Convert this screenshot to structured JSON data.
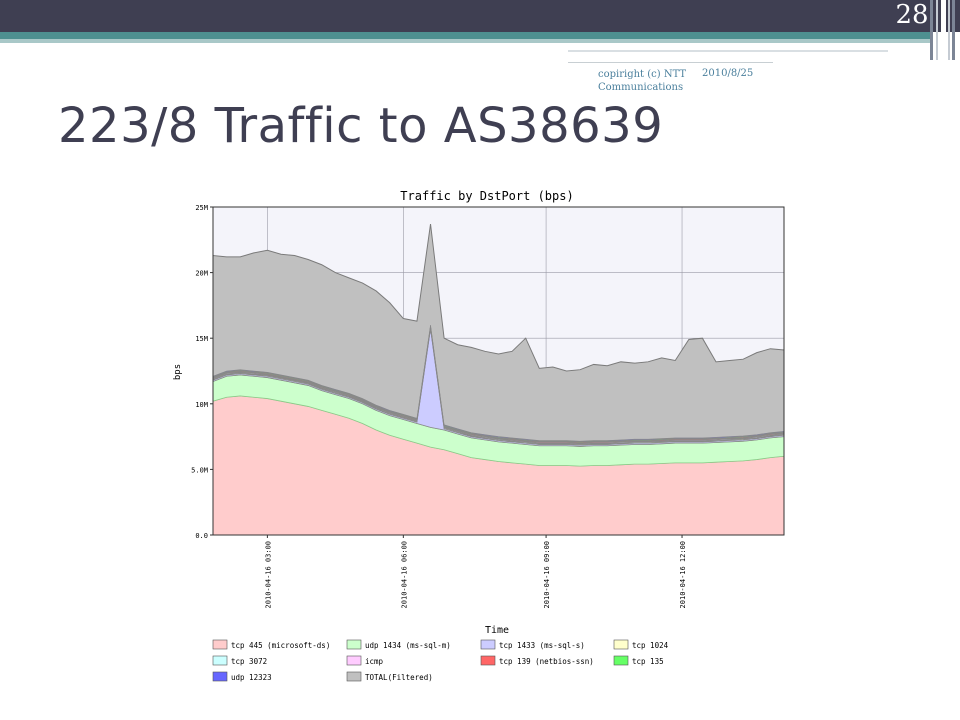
{
  "slide": {
    "number": "28",
    "copyright": "copiright (c) NTT Communications",
    "date": "2010/8/25",
    "title": "223/8 Traffic to AS38639"
  },
  "chart_data": {
    "type": "area",
    "stacked": true,
    "title": "Traffic by DstPort (bps)",
    "xlabel": "Time",
    "ylabel": "bps",
    "ylim": [
      0,
      25000000
    ],
    "yticks": [
      {
        "value": 0,
        "label": "0.0"
      },
      {
        "value": 5000000,
        "label": "5.0M"
      },
      {
        "value": 10000000,
        "label": "10M"
      },
      {
        "value": 15000000,
        "label": "15M"
      },
      {
        "value": 20000000,
        "label": "20M"
      },
      {
        "value": 25000000,
        "label": "25M"
      }
    ],
    "xlim": [
      0,
      42
    ],
    "xticks": [
      {
        "value": 4,
        "label": "2010-04-16 03:00"
      },
      {
        "value": 14,
        "label": "2010-04-16 06:00"
      },
      {
        "value": 24.5,
        "label": "2010-04-16 09:00"
      },
      {
        "value": 34.5,
        "label": "2010-04-16 12:00"
      }
    ],
    "grid": true,
    "legend_position": "bottom",
    "legend": [
      {
        "label": "tcp 445 (microsoft-ds)",
        "color": "#ffcccc"
      },
      {
        "label": "udp 1434 (ms-sql-m)",
        "color": "#ccffcc"
      },
      {
        "label": "tcp 1433 (ms-sql-s)",
        "color": "#ccccff"
      },
      {
        "label": "tcp 1024",
        "color": "#ffffcc"
      },
      {
        "label": "tcp 3072",
        "color": "#ccffff"
      },
      {
        "label": "icmp",
        "color": "#ffccff"
      },
      {
        "label": "tcp 139 (netbios-ssn)",
        "color": "#ff6666"
      },
      {
        "label": "tcp 135",
        "color": "#66ff66"
      },
      {
        "label": "udp 12323",
        "color": "#6666ff"
      },
      {
        "label": "TOTAL(Filtered)",
        "color": "#c0c0c0"
      }
    ],
    "x": [
      0,
      1,
      2,
      3,
      4,
      5,
      6,
      7,
      8,
      9,
      10,
      11,
      12,
      13,
      14,
      15,
      16,
      17,
      18,
      19,
      20,
      21,
      22,
      23,
      24,
      25,
      26,
      27,
      28,
      29,
      30,
      31,
      32,
      33,
      34,
      35,
      36,
      37,
      38,
      39,
      40,
      41,
      42
    ],
    "series": [
      {
        "name": "tcp 445 (microsoft-ds)",
        "color": "#ffcccc",
        "values": [
          10.2,
          10.5,
          10.6,
          10.5,
          10.4,
          10.2,
          10.0,
          9.8,
          9.5,
          9.2,
          8.9,
          8.5,
          8.0,
          7.6,
          7.3,
          7.0,
          6.7,
          6.5,
          6.2,
          5.9,
          5.75,
          5.6,
          5.5,
          5.4,
          5.3,
          5.3,
          5.3,
          5.25,
          5.3,
          5.3,
          5.35,
          5.4,
          5.4,
          5.45,
          5.5,
          5.5,
          5.5,
          5.55,
          5.6,
          5.65,
          5.75,
          5.9,
          6.0
        ]
      },
      {
        "name": "udp 1434 (ms-sql-m)",
        "color": "#ccffcc",
        "values": [
          1.5,
          1.6,
          1.6,
          1.6,
          1.6,
          1.6,
          1.6,
          1.6,
          1.5,
          1.5,
          1.5,
          1.5,
          1.5,
          1.5,
          1.5,
          1.5,
          1.5,
          1.5,
          1.5,
          1.5,
          1.5,
          1.5,
          1.5,
          1.5,
          1.5,
          1.5,
          1.5,
          1.5,
          1.5,
          1.5,
          1.5,
          1.5,
          1.5,
          1.5,
          1.5,
          1.5,
          1.5,
          1.5,
          1.5,
          1.5,
          1.5,
          1.5,
          1.5
        ]
      },
      {
        "name": "tcp 1433 (ms-sql-s)",
        "color": "#ccccff",
        "values": [
          0.1,
          0.1,
          0.1,
          0.1,
          0.1,
          0.1,
          0.1,
          0.1,
          0.1,
          0.1,
          0.1,
          0.1,
          0.1,
          0.1,
          0.1,
          0.1,
          7.5,
          0.1,
          0.1,
          0.1,
          0.1,
          0.1,
          0.1,
          0.1,
          0.1,
          0.1,
          0.1,
          0.1,
          0.1,
          0.1,
          0.1,
          0.1,
          0.1,
          0.1,
          0.1,
          0.1,
          0.1,
          0.1,
          0.1,
          0.1,
          0.1,
          0.1,
          0.1
        ]
      },
      {
        "name": "tcp 1024",
        "color": "#ffffcc",
        "values": [
          0.05,
          0.05,
          0.05,
          0.05,
          0.05,
          0.05,
          0.05,
          0.05,
          0.05,
          0.05,
          0.05,
          0.05,
          0.05,
          0.05,
          0.05,
          0.05,
          0.05,
          0.05,
          0.05,
          0.05,
          0.05,
          0.05,
          0.05,
          0.05,
          0.05,
          0.05,
          0.05,
          0.05,
          0.05,
          0.05,
          0.05,
          0.05,
          0.05,
          0.05,
          0.05,
          0.05,
          0.05,
          0.05,
          0.05,
          0.05,
          0.05,
          0.05,
          0.05
        ]
      },
      {
        "name": "tcp 3072",
        "color": "#ccffff",
        "values": [
          0.05,
          0.05,
          0.05,
          0.05,
          0.05,
          0.05,
          0.05,
          0.05,
          0.05,
          0.05,
          0.05,
          0.05,
          0.05,
          0.05,
          0.05,
          0.05,
          0.05,
          0.05,
          0.05,
          0.05,
          0.05,
          0.05,
          0.05,
          0.05,
          0.05,
          0.05,
          0.05,
          0.05,
          0.05,
          0.05,
          0.05,
          0.05,
          0.05,
          0.05,
          0.05,
          0.05,
          0.05,
          0.05,
          0.05,
          0.05,
          0.05,
          0.05,
          0.05
        ]
      },
      {
        "name": "icmp",
        "color": "#ffccff",
        "values": [
          0.05,
          0.05,
          0.05,
          0.05,
          0.05,
          0.05,
          0.05,
          0.05,
          0.05,
          0.05,
          0.05,
          0.05,
          0.05,
          0.05,
          0.05,
          0.05,
          0.05,
          0.05,
          0.05,
          0.05,
          0.05,
          0.05,
          0.05,
          0.05,
          0.05,
          0.05,
          0.05,
          0.05,
          0.05,
          0.05,
          0.05,
          0.05,
          0.05,
          0.05,
          0.05,
          0.05,
          0.05,
          0.05,
          0.05,
          0.05,
          0.05,
          0.05,
          0.05
        ]
      },
      {
        "name": "tcp 139 (netbios-ssn)",
        "color": "#ff6666",
        "values": [
          0.05,
          0.05,
          0.05,
          0.05,
          0.05,
          0.05,
          0.05,
          0.05,
          0.05,
          0.05,
          0.05,
          0.05,
          0.05,
          0.05,
          0.05,
          0.05,
          0.05,
          0.05,
          0.05,
          0.05,
          0.05,
          0.05,
          0.05,
          0.05,
          0.05,
          0.05,
          0.05,
          0.05,
          0.05,
          0.05,
          0.05,
          0.05,
          0.05,
          0.05,
          0.05,
          0.05,
          0.05,
          0.05,
          0.05,
          0.05,
          0.05,
          0.05,
          0.05
        ]
      },
      {
        "name": "tcp 135",
        "color": "#66ff66",
        "values": [
          0.05,
          0.05,
          0.05,
          0.05,
          0.05,
          0.05,
          0.05,
          0.05,
          0.05,
          0.05,
          0.05,
          0.05,
          0.05,
          0.05,
          0.05,
          0.05,
          0.05,
          0.05,
          0.05,
          0.05,
          0.05,
          0.05,
          0.05,
          0.05,
          0.05,
          0.05,
          0.05,
          0.05,
          0.05,
          0.05,
          0.05,
          0.05,
          0.05,
          0.05,
          0.05,
          0.05,
          0.05,
          0.05,
          0.05,
          0.05,
          0.05,
          0.05,
          0.05
        ]
      },
      {
        "name": "udp 12323",
        "color": "#6666ff",
        "values": [
          0.05,
          0.05,
          0.05,
          0.05,
          0.05,
          0.05,
          0.05,
          0.05,
          0.05,
          0.05,
          0.05,
          0.05,
          0.05,
          0.05,
          0.05,
          0.05,
          0.05,
          0.05,
          0.05,
          0.05,
          0.05,
          0.05,
          0.05,
          0.05,
          0.05,
          0.05,
          0.05,
          0.05,
          0.05,
          0.05,
          0.05,
          0.05,
          0.05,
          0.05,
          0.05,
          0.05,
          0.05,
          0.05,
          0.05,
          0.05,
          0.05,
          0.05,
          0.05
        ]
      }
    ],
    "total": {
      "name": "TOTAL(Filtered)",
      "color": "#c0c0c0",
      "values": [
        21.3,
        21.2,
        21.2,
        21.5,
        21.7,
        21.4,
        21.3,
        21.0,
        20.6,
        20.0,
        19.6,
        19.2,
        18.6,
        17.7,
        16.5,
        16.3,
        23.7,
        15.0,
        14.5,
        14.3,
        14.0,
        13.8,
        14.0,
        15.0,
        12.7,
        12.8,
        12.5,
        12.6,
        13.0,
        12.9,
        13.2,
        13.1,
        13.2,
        13.5,
        13.3,
        14.9,
        15.0,
        13.2,
        13.3,
        13.4,
        13.9,
        14.2,
        14.1
      ]
    },
    "y_unit_scale": 1000000
  }
}
